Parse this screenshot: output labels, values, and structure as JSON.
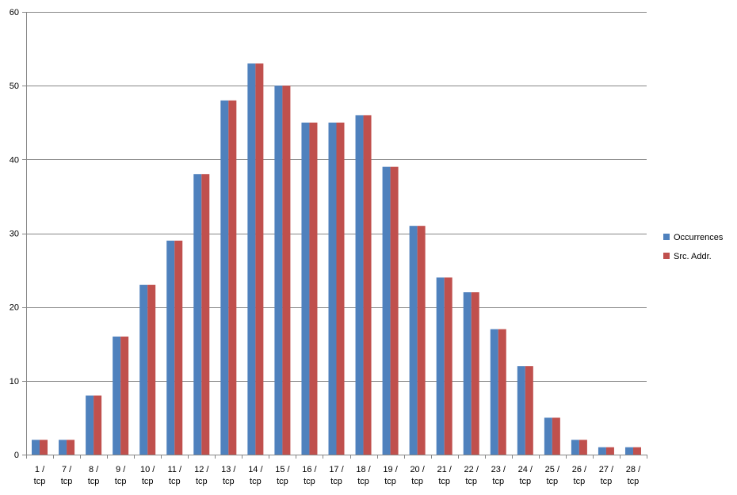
{
  "chart_data": {
    "type": "bar",
    "categories": [
      "1 / tcp",
      "7 / tcp",
      "8 / tcp",
      "9 / tcp",
      "10 / tcp",
      "11 / tcp",
      "12 / tcp",
      "13 / tcp",
      "14 / tcp",
      "15 / tcp",
      "16 / tcp",
      "17 / tcp",
      "18 / tcp",
      "19 / tcp",
      "20 / tcp",
      "21 / tcp",
      "22 / tcp",
      "23 / tcp",
      "24 / tcp",
      "25 / tcp",
      "26 / tcp",
      "27 / tcp",
      "28 / tcp"
    ],
    "series": [
      {
        "name": "Occurrences",
        "color": "#4f81bd",
        "values": [
          2,
          2,
          8,
          16,
          23,
          29,
          38,
          48,
          53,
          50,
          45,
          45,
          46,
          39,
          31,
          24,
          22,
          17,
          12,
          5,
          2,
          1,
          1
        ]
      },
      {
        "name": "Src. Addr.",
        "color": "#c0504d",
        "values": [
          2,
          2,
          8,
          16,
          23,
          29,
          38,
          48,
          53,
          50,
          45,
          45,
          46,
          39,
          31,
          24,
          22,
          17,
          12,
          5,
          2,
          1,
          1
        ]
      }
    ],
    "ylim": [
      0,
      60
    ],
    "yticks": [
      0,
      10,
      20,
      30,
      40,
      50,
      60
    ],
    "grid": true,
    "legend_position": "right",
    "gridline_color": "#868686",
    "axis_color": "#868686"
  }
}
